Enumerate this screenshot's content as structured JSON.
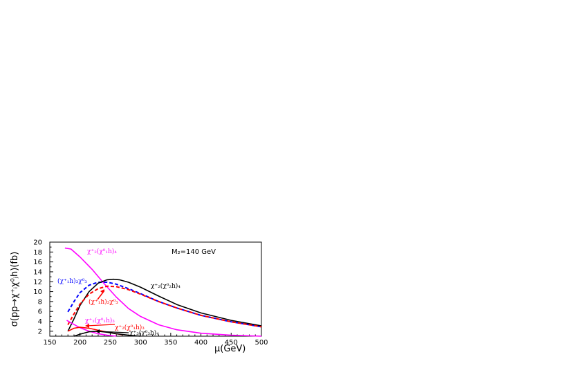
{
  "chart_data": {
    "type": "line",
    "xlabel": "μ(GeV)",
    "ylabel": "σ(pp→χ⁺ᵢχ⁰ⱼh)(fb)",
    "xlim": [
      150,
      500
    ],
    "ylim": [
      1,
      20
    ],
    "x_ticks": [
      150,
      200,
      250,
      300,
      350,
      400,
      450,
      500
    ],
    "y_ticks": [
      2,
      4,
      6,
      8,
      10,
      12,
      14,
      16,
      18,
      20
    ],
    "grid": false,
    "legend": "none",
    "note": "M₂=140 GeV",
    "series": [
      {
        "name": "χ⁺₂(χ⁰₁h)₄",
        "color": "#ff00ff",
        "dash": "solid",
        "x": [
          175,
          185,
          200,
          220,
          240,
          260,
          280,
          300,
          330,
          360,
          400,
          450,
          500
        ],
        "y": [
          18.8,
          18.6,
          17.0,
          14.5,
          11.6,
          8.9,
          6.6,
          5.0,
          3.3,
          2.3,
          1.6,
          1.2,
          1.0
        ]
      },
      {
        "name": "(χ⁺₁h)₃χ⁰₃",
        "color": "#0000ff",
        "dash": "dashed",
        "x": [
          180,
          190,
          200,
          215,
          230,
          245,
          260,
          280,
          300,
          330,
          360,
          400,
          450,
          500
        ],
        "y": [
          5.9,
          8.0,
          9.8,
          11.3,
          11.9,
          11.9,
          11.5,
          10.6,
          9.6,
          8.0,
          6.7,
          5.2,
          3.9,
          2.9
        ]
      },
      {
        "name": "χ⁺₂(χ⁰₂h)₄",
        "color": "#000000",
        "dash": "solid",
        "x": [
          180,
          190,
          200,
          215,
          230,
          245,
          255,
          265,
          280,
          300,
          330,
          360,
          400,
          450,
          500
        ],
        "y": [
          2.0,
          4.5,
          7.2,
          10.0,
          11.7,
          12.4,
          12.5,
          12.4,
          11.9,
          10.9,
          9.1,
          7.4,
          5.7,
          4.2,
          3.1
        ]
      },
      {
        "name": "(χ⁺₁h)₃χ⁰₃ ",
        "color": "#ff0000",
        "dash": "dashed",
        "x": [
          180,
          190,
          200,
          215,
          230,
          245,
          260,
          280,
          300,
          330,
          360,
          400,
          450,
          500
        ],
        "y": [
          3.3,
          5.5,
          7.5,
          9.5,
          10.6,
          11.1,
          11.0,
          10.4,
          9.5,
          8.0,
          6.7,
          5.2,
          3.9,
          2.9
        ]
      },
      {
        "name": "χ⁺₁(χ⁰₁h)₃",
        "color": "#ff00ff",
        "dash": "solid",
        "x": [
          178,
          188,
          200,
          215,
          230,
          245,
          260
        ],
        "y": [
          4.2,
          3.5,
          2.7,
          2.0,
          1.5,
          1.2,
          1.0
        ]
      },
      {
        "name": "χ⁺₂(χ⁰₁h)₃",
        "color": "#ff0000",
        "dash": "solid",
        "x": [
          180,
          190,
          200,
          215,
          230,
          250,
          270
        ],
        "y": [
          2.0,
          2.6,
          2.8,
          2.6,
          2.2,
          1.7,
          1.3
        ]
      },
      {
        "name": "χ⁺₃(χ⁰₃h)₄",
        "color": "#000000",
        "dash": "solid",
        "x": [
          190,
          200,
          215,
          230,
          245,
          260,
          280,
          300
        ],
        "y": [
          1.0,
          1.4,
          1.9,
          2.0,
          1.8,
          1.5,
          1.2,
          1.0
        ]
      }
    ]
  },
  "annotations": [
    {
      "text": "χ⁺₂(χ⁰₁h)₄",
      "color": "#ff00ff"
    },
    {
      "text": "(χ⁺₁h)₃χ⁰₃",
      "color": "#0000ff"
    },
    {
      "text": "χ⁺₂(χ⁰₂h)₄",
      "color": "#000000"
    },
    {
      "text": "(χ⁺₁h)₃χ⁰₃",
      "color": "#ff0000"
    },
    {
      "text": "χ⁺₁(χ⁰₁h)₃",
      "color": "#ff00ff"
    },
    {
      "text": "χ⁺₂(χ⁰₁h)₃",
      "color": "#ff0000"
    },
    {
      "text": "χ⁺₃(χ⁰₃h)₄",
      "color": "#000000"
    }
  ]
}
